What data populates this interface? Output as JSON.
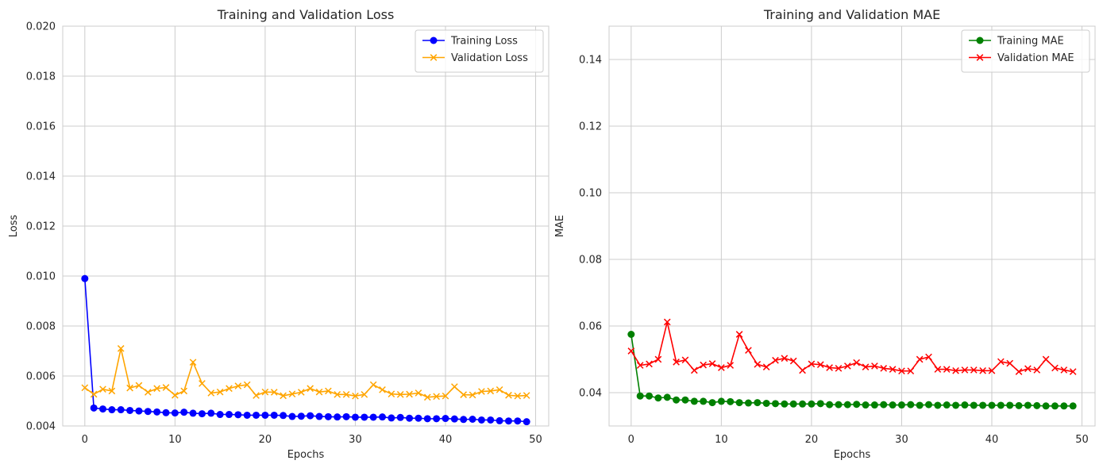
{
  "chart_data": [
    {
      "type": "line",
      "title": "Training and Validation Loss",
      "xlabel": "Epochs",
      "ylabel": "Loss",
      "xlim": [
        -2.45,
        51.45
      ],
      "ylim": [
        0.004,
        0.02
      ],
      "x_ticks": [
        0,
        10,
        20,
        30,
        40,
        50
      ],
      "y_ticks": [
        0.004,
        0.006,
        0.008,
        0.01,
        0.012,
        0.014,
        0.016,
        0.018,
        0.02
      ],
      "y_tick_labels": [
        "0.004",
        "0.006",
        "0.008",
        "0.010",
        "0.012",
        "0.014",
        "0.016",
        "0.018",
        "0.020"
      ],
      "grid": true,
      "legend": "top-right",
      "x": [
        0,
        1,
        2,
        3,
        4,
        5,
        6,
        7,
        8,
        9,
        10,
        11,
        12,
        13,
        14,
        15,
        16,
        17,
        18,
        19,
        20,
        21,
        22,
        23,
        24,
        25,
        26,
        27,
        28,
        29,
        30,
        31,
        32,
        33,
        34,
        35,
        36,
        37,
        38,
        39,
        40,
        41,
        42,
        43,
        44,
        45,
        46,
        47,
        48,
        49
      ],
      "series": [
        {
          "name": "Training Loss",
          "color": "#0000ff",
          "marker": "circle",
          "values": [
            0.0099,
            0.00472,
            0.00468,
            0.00465,
            0.00465,
            0.00462,
            0.0046,
            0.00458,
            0.00456,
            0.00453,
            0.00452,
            0.00455,
            0.00451,
            0.00449,
            0.00451,
            0.00446,
            0.00446,
            0.00445,
            0.00443,
            0.00443,
            0.00443,
            0.00443,
            0.00442,
            0.00438,
            0.00439,
            0.00441,
            0.00438,
            0.00437,
            0.00436,
            0.00437,
            0.00435,
            0.00435,
            0.00435,
            0.00436,
            0.00432,
            0.00434,
            0.00431,
            0.00431,
            0.00429,
            0.00429,
            0.0043,
            0.00428,
            0.00426,
            0.00427,
            0.00424,
            0.00424,
            0.00421,
            0.0042,
            0.0042,
            0.00417
          ]
        },
        {
          "name": "Validation Loss",
          "color": "#ffa500",
          "marker": "x",
          "values": [
            0.00553,
            0.00527,
            0.00547,
            0.0054,
            0.0071,
            0.00552,
            0.00562,
            0.00535,
            0.0055,
            0.00554,
            0.00523,
            0.0054,
            0.00655,
            0.0057,
            0.00532,
            0.00536,
            0.0055,
            0.0056,
            0.00565,
            0.00522,
            0.00536,
            0.00535,
            0.00521,
            0.00528,
            0.00535,
            0.0055,
            0.00536,
            0.0054,
            0.00526,
            0.00526,
            0.0052,
            0.00526,
            0.00565,
            0.00545,
            0.00528,
            0.00526,
            0.00527,
            0.00532,
            0.00515,
            0.00518,
            0.0052,
            0.00557,
            0.00525,
            0.00524,
            0.00538,
            0.0054,
            0.00545,
            0.00523,
            0.0052,
            0.00522
          ]
        }
      ]
    },
    {
      "type": "line",
      "title": "Training and Validation MAE",
      "xlabel": "Epochs",
      "ylabel": "MAE",
      "xlim": [
        -2.45,
        51.45
      ],
      "ylim": [
        0.03,
        0.15
      ],
      "x_ticks": [
        0,
        10,
        20,
        30,
        40,
        50
      ],
      "y_ticks": [
        0.04,
        0.06,
        0.08,
        0.1,
        0.12,
        0.14
      ],
      "y_tick_labels": [
        "0.04",
        "0.06",
        "0.08",
        "0.10",
        "0.12",
        "0.14"
      ],
      "grid": true,
      "legend": "top-right",
      "x": [
        0,
        1,
        2,
        3,
        4,
        5,
        6,
        7,
        8,
        9,
        10,
        11,
        12,
        13,
        14,
        15,
        16,
        17,
        18,
        19,
        20,
        21,
        22,
        23,
        24,
        25,
        26,
        27,
        28,
        29,
        30,
        31,
        32,
        33,
        34,
        35,
        36,
        37,
        38,
        39,
        40,
        41,
        42,
        43,
        44,
        45,
        46,
        47,
        48,
        49
      ],
      "series": [
        {
          "name": "Training MAE",
          "color": "#008000",
          "marker": "circle",
          "values": [
            0.0575,
            0.039,
            0.039,
            0.0384,
            0.0386,
            0.0378,
            0.0378,
            0.0374,
            0.0374,
            0.037,
            0.0374,
            0.0373,
            0.037,
            0.0369,
            0.037,
            0.0368,
            0.0367,
            0.0366,
            0.0366,
            0.0366,
            0.0366,
            0.0367,
            0.0364,
            0.0364,
            0.0364,
            0.0365,
            0.0363,
            0.0363,
            0.0364,
            0.0363,
            0.0363,
            0.0364,
            0.0362,
            0.0364,
            0.0362,
            0.0363,
            0.0362,
            0.0363,
            0.0362,
            0.0362,
            0.0362,
            0.0362,
            0.0362,
            0.0361,
            0.0362,
            0.0361,
            0.036,
            0.036,
            0.036,
            0.036
          ]
        },
        {
          "name": "Validation MAE",
          "color": "#ff0000",
          "marker": "x",
          "values": [
            0.0525,
            0.0482,
            0.0486,
            0.05,
            0.0612,
            0.0492,
            0.0498,
            0.0467,
            0.0483,
            0.0487,
            0.0475,
            0.0482,
            0.0575,
            0.0527,
            0.0485,
            0.0477,
            0.0497,
            0.0503,
            0.0495,
            0.0467,
            0.0486,
            0.0484,
            0.0475,
            0.0473,
            0.048,
            0.049,
            0.0477,
            0.048,
            0.0473,
            0.047,
            0.0465,
            0.0465,
            0.05,
            0.0507,
            0.047,
            0.047,
            0.0466,
            0.0468,
            0.0468,
            0.0466,
            0.0466,
            0.0493,
            0.0488,
            0.0463,
            0.0472,
            0.0468,
            0.05,
            0.0474,
            0.0468,
            0.0463
          ]
        }
      ]
    }
  ]
}
